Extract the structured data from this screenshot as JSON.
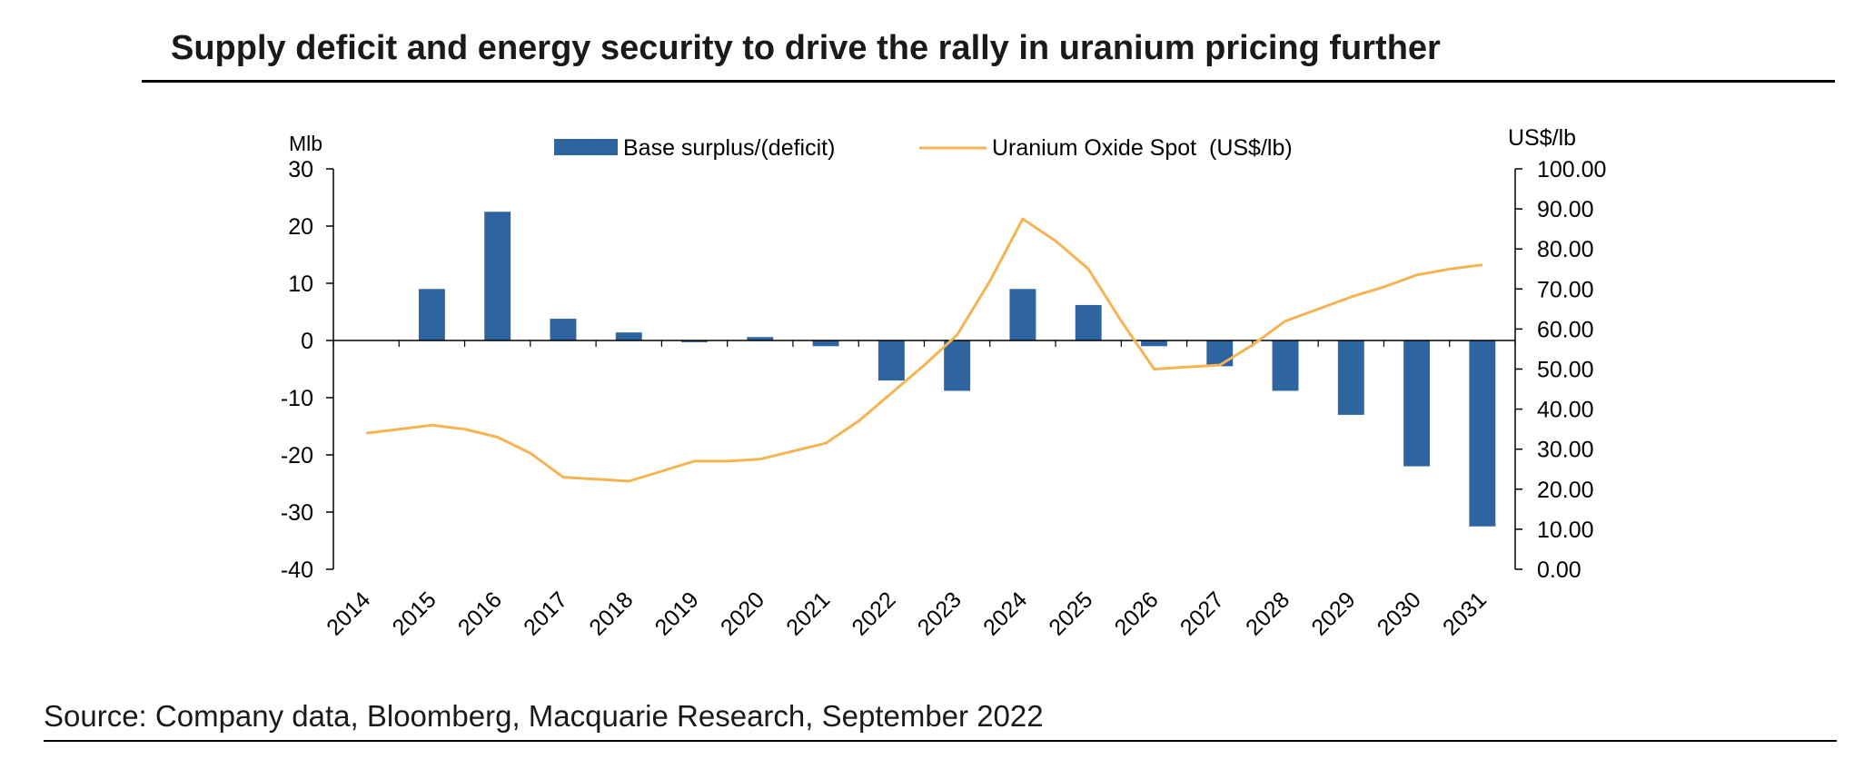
{
  "title": "Supply deficit and energy security to drive the rally in uranium pricing further",
  "source": "Source: Company data, Bloomberg, Macquarie Research, September 2022",
  "chart_data": {
    "type": "bar",
    "categories": [
      "2014",
      "2015",
      "2016",
      "2017",
      "2018",
      "2019",
      "2020",
      "2021",
      "2022",
      "2023",
      "2024",
      "2025",
      "2026",
      "2027",
      "2028",
      "2029",
      "2030",
      "2031"
    ],
    "series": [
      {
        "name": "Base surplus/(deficit)",
        "type": "bar",
        "axis": "left",
        "color": "#2e64a0",
        "values": [
          0,
          9,
          22.5,
          3.8,
          1.4,
          -0.3,
          0.6,
          -1,
          -7,
          -8.8,
          9,
          6.2,
          -1,
          -4.5,
          -8.8,
          -13,
          -22,
          -32.5
        ]
      },
      {
        "name": "Uranium Oxide Spot  (US$/lb)",
        "type": "line",
        "axis": "right",
        "color": "#f5b352",
        "x": [
          2014,
          2014.5,
          2015,
          2015.5,
          2016,
          2016.5,
          2017,
          2017.5,
          2018,
          2018.5,
          2019,
          2019.5,
          2020,
          2020.5,
          2021,
          2021.5,
          2022,
          2022.5,
          2023,
          2023.5,
          2024,
          2024.5,
          2025,
          2025.5,
          2026,
          2026.5,
          2027,
          2027.5,
          2028,
          2028.5,
          2029,
          2029.5,
          2030,
          2030.5,
          2031
        ],
        "values": [
          34,
          35,
          36,
          35,
          33,
          29,
          23,
          22.5,
          22,
          24.5,
          27,
          27,
          27.5,
          29.5,
          31.5,
          37,
          44,
          51,
          58.5,
          72,
          87.5,
          82,
          75,
          62,
          50,
          50.5,
          51,
          56,
          62,
          65,
          68,
          70.5,
          73.5,
          75,
          76
        ]
      }
    ],
    "y_left": {
      "label": "Mlb",
      "ylim": [
        -40,
        30
      ],
      "ticks": [
        "30",
        "20",
        "10",
        "0",
        "-10",
        "-20",
        "-30",
        "-40"
      ]
    },
    "y_right": {
      "label": "US$/lb",
      "ylim": [
        0,
        100
      ],
      "ticks": [
        "100.00",
        "90.00",
        "80.00",
        "70.00",
        "60.00",
        "50.00",
        "40.00",
        "30.00",
        "20.00",
        "10.00",
        "0.00"
      ]
    },
    "legend_position": "top",
    "grid": false
  }
}
